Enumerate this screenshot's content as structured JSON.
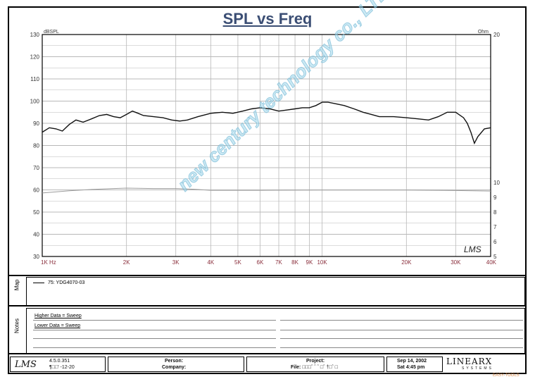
{
  "chart_data": {
    "type": "line",
    "title": "SPL vs Freq",
    "ylabel_left": "dBSPL",
    "ylabel_right": "Ohm",
    "x_scale": "log",
    "xlim": [
      1000,
      40000
    ],
    "ylim_left": [
      30,
      130
    ],
    "ylim_right": [
      5,
      20
    ],
    "grid": true,
    "y_ticks_left": [
      "130",
      "120",
      "110",
      "100",
      "90",
      "80",
      "70",
      "60",
      "50",
      "40",
      "30"
    ],
    "y_ticks_right": [
      "20",
      "10",
      "9",
      "8",
      "7",
      "6",
      "5"
    ],
    "x_ticks": [
      {
        "value": 1000,
        "label": "1K Hz"
      },
      {
        "value": 2000,
        "label": "2K"
      },
      {
        "value": 3000,
        "label": "3K"
      },
      {
        "value": 4000,
        "label": "4K"
      },
      {
        "value": 5000,
        "label": "5K"
      },
      {
        "value": 6000,
        "label": "6K"
      },
      {
        "value": 7000,
        "label": "7K"
      },
      {
        "value": 8000,
        "label": "8K"
      },
      {
        "value": 9000,
        "label": "9K"
      },
      {
        "value": 10000,
        "label": "10K"
      },
      {
        "value": 20000,
        "label": "20K"
      },
      {
        "value": 30000,
        "label": "30K"
      },
      {
        "value": 40000,
        "label": "40K"
      }
    ],
    "series": [
      {
        "name": "75: YDG4070-03",
        "axis": "left",
        "color": "#111111",
        "x": [
          1000,
          1060,
          1120,
          1180,
          1250,
          1320,
          1400,
          1500,
          1600,
          1700,
          1800,
          1900,
          2000,
          2100,
          2200,
          2300,
          2500,
          2700,
          2900,
          3100,
          3300,
          3600,
          4000,
          4400,
          4800,
          5200,
          5600,
          6000,
          6500,
          7000,
          7500,
          8000,
          8500,
          9000,
          9500,
          10000,
          10500,
          11000,
          12000,
          13000,
          14000,
          15000,
          16000,
          18000,
          20000,
          22000,
          24000,
          26000,
          28000,
          30000,
          32000,
          33000,
          34000,
          35000,
          36000,
          38000,
          40000
        ],
        "y": [
          86,
          88,
          87.5,
          86.5,
          89.5,
          91.5,
          90.5,
          92,
          93.5,
          94,
          93,
          92.5,
          94,
          95.5,
          94.5,
          93.5,
          93,
          92.5,
          91.5,
          91,
          91.5,
          93,
          94.5,
          95,
          94.5,
          95.5,
          96.5,
          97,
          96.5,
          95.5,
          96,
          96.5,
          97,
          97,
          98,
          99.5,
          99.5,
          99,
          98,
          96.5,
          95,
          94,
          93,
          93,
          92.5,
          92,
          91.5,
          93,
          95,
          95,
          92.5,
          90,
          86,
          81,
          84,
          87.5,
          88
        ]
      },
      {
        "name": "",
        "axis": "left",
        "color": "#9a9a9a",
        "x": [
          1000,
          1250,
          1500,
          1800,
          2000,
          2500,
          3000,
          3500,
          4000,
          6000,
          10000,
          20000,
          30000,
          40000
        ],
        "y": [
          58.6,
          59.6,
          60.2,
          60.6,
          60.8,
          60.6,
          60.6,
          60.3,
          59.8,
          59.8,
          59.9,
          59.9,
          59.7,
          59.5
        ]
      }
    ]
  },
  "legend": {
    "section_label": "Map",
    "entry": "75: YDG4070-03"
  },
  "notes": {
    "section_label": "Notes",
    "line1": "Higher Data = Sweep",
    "line2": "Lower Data = Sweep"
  },
  "plot_logo": "LMS",
  "footer": {
    "logo": "LMS",
    "version": "4.5.0.351",
    "version_sub": "¶□□'  -12-20",
    "person_label": "Person:",
    "company_label": "Company:",
    "project_label": "Project:",
    "file_label": "File:",
    "file_value": "□□□ˆ ˆ  ˆ □ˆ †□ˆ  □",
    "date": "Sep 14, 2002",
    "day_time": "Sat  4:45 pm",
    "brand": "LINEARX",
    "brand_sub": "SYSTEMS"
  },
  "watermark": "new century technology co., LTD",
  "corner_badge": "EASY-TOOLS",
  "colors": {
    "title": "#3b4e74",
    "grid": "#b8b8b8",
    "x_tick_label": "#8a2f3c",
    "primary_line": "#111111",
    "secondary_line": "#9a9a9a",
    "watermark": "#a0d7eb"
  }
}
